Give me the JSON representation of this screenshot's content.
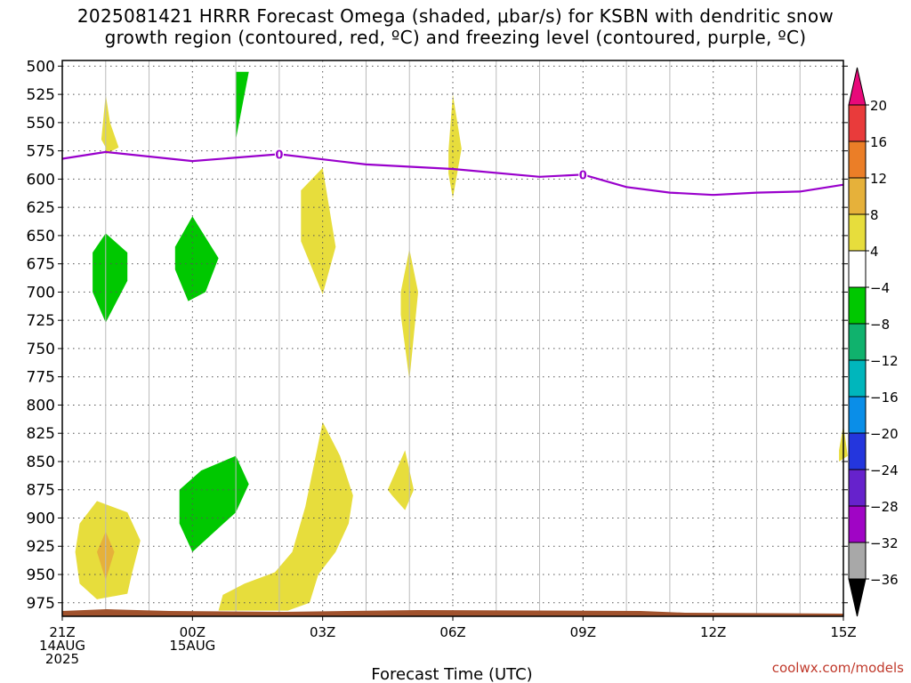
{
  "title_line1": "2025081421 HRRR Forecast Omega (shaded, μbar/s) for KSBN with dendritic snow",
  "title_line2": "growth region (contoured, red, ºC) and freezing level (contoured, purple, ºC)",
  "credit": "coolwx.com/models",
  "chart_data": {
    "type": "heatmap",
    "xlabel": "Forecast Time (UTC)",
    "ylabel": "",
    "y_scale": "linear, inverted (pressure hPa)",
    "ylim": [
      987,
      495
    ],
    "xlim": [
      0,
      18
    ],
    "grid": true,
    "x_ticks": [
      {
        "h": 0,
        "lines": [
          "21Z",
          "14AUG",
          "2025"
        ]
      },
      {
        "h": 3,
        "lines": [
          "00Z",
          "15AUG"
        ]
      },
      {
        "h": 6,
        "lines": [
          "03Z"
        ]
      },
      {
        "h": 9,
        "lines": [
          "06Z"
        ]
      },
      {
        "h": 12,
        "lines": [
          "09Z"
        ]
      },
      {
        "h": 15,
        "lines": [
          "12Z"
        ]
      },
      {
        "h": 18,
        "lines": [
          "15Z"
        ]
      }
    ],
    "y_ticks": [
      500,
      525,
      550,
      575,
      600,
      625,
      650,
      675,
      700,
      725,
      750,
      775,
      800,
      825,
      850,
      875,
      900,
      925,
      950,
      975
    ],
    "colorbar": {
      "labels": [
        "20",
        "16",
        "12",
        "8",
        "4",
        "−4",
        "−8",
        "−12",
        "−16",
        "−20",
        "−24",
        "−28",
        "−32",
        "−36"
      ],
      "colors": [
        "#e8097a",
        "#e93b3b",
        "#eb7e27",
        "#e6b13a",
        "#e7dd3c",
        "#ffffff",
        "#00c800",
        "#10b26d",
        "#00b6bc",
        "#0a8ee8",
        "#2436dd",
        "#6622cc",
        "#a005c5",
        "#a8a8a8",
        "#000000"
      ]
    },
    "freezing_level": {
      "label": "0",
      "color": "#9900cc",
      "x": [
        0,
        1,
        3,
        5,
        7,
        9,
        11,
        12,
        13,
        14,
        15,
        16,
        17,
        18
      ],
      "y": [
        582,
        576,
        584,
        578,
        587,
        591,
        598,
        596,
        607,
        612,
        614,
        612,
        611,
        605
      ]
    },
    "omega_regions": [
      {
        "value": 6,
        "color": "#e7dd3c",
        "points": [
          [
            1.0,
            572
          ],
          [
            0.9,
            565
          ],
          [
            1.0,
            525
          ],
          [
            1.1,
            550
          ],
          [
            1.3,
            572
          ],
          [
            1.0,
            578
          ]
        ]
      },
      {
        "value": 6,
        "color": "#e7dd3c",
        "points": [
          [
            8.9,
            575
          ],
          [
            9.0,
            525
          ],
          [
            9.2,
            573
          ],
          [
            9.0,
            617
          ],
          [
            8.9,
            595
          ]
        ]
      },
      {
        "value": 6,
        "color": "#e7dd3c",
        "points": [
          [
            5.5,
            610
          ],
          [
            6.0,
            590
          ],
          [
            6.3,
            660
          ],
          [
            6.0,
            702
          ],
          [
            5.5,
            655
          ]
        ]
      },
      {
        "value": 6,
        "color": "#e7dd3c",
        "points": [
          [
            7.8,
            700
          ],
          [
            8.0,
            662
          ],
          [
            8.2,
            700
          ],
          [
            8.0,
            778
          ],
          [
            7.8,
            720
          ]
        ]
      },
      {
        "value": 6,
        "color": "#e7dd3c",
        "points": [
          [
            5.6,
            890
          ],
          [
            6.0,
            815
          ],
          [
            6.4,
            845
          ],
          [
            6.7,
            880
          ],
          [
            6.6,
            905
          ],
          [
            6.3,
            930
          ],
          [
            5.9,
            950
          ],
          [
            5.7,
            975
          ],
          [
            5.2,
            982
          ],
          [
            4.5,
            982
          ],
          [
            3.6,
            982
          ],
          [
            3.7,
            968
          ],
          [
            4.2,
            958
          ],
          [
            4.9,
            948
          ],
          [
            5.3,
            930
          ]
        ]
      },
      {
        "value": 6,
        "color": "#e7dd3c",
        "points": [
          [
            7.5,
            875
          ],
          [
            7.9,
            840
          ],
          [
            8.1,
            875
          ],
          [
            7.9,
            893
          ],
          [
            7.6,
            880
          ]
        ]
      },
      {
        "value": 6,
        "color": "#e7dd3c",
        "points": [
          [
            0.4,
            905
          ],
          [
            0.8,
            885
          ],
          [
            1.5,
            895
          ],
          [
            1.8,
            920
          ],
          [
            1.6,
            950
          ],
          [
            1.5,
            967
          ],
          [
            0.8,
            972
          ],
          [
            0.4,
            958
          ],
          [
            0.3,
            930
          ]
        ]
      },
      {
        "value": 6,
        "color": "#e7dd3c",
        "points": [
          [
            17.9,
            840
          ],
          [
            18.0,
            818
          ],
          [
            18.1,
            845
          ],
          [
            17.9,
            850
          ]
        ]
      },
      {
        "value": 10,
        "color": "#e6b13a",
        "points": [
          [
            1.0,
            912
          ],
          [
            1.2,
            930
          ],
          [
            1.0,
            955
          ],
          [
            0.8,
            930
          ]
        ]
      },
      {
        "value": -6,
        "color": "#00c800",
        "points": [
          [
            4.0,
            505
          ],
          [
            4.0,
            565
          ],
          [
            4.3,
            505
          ]
        ]
      },
      {
        "value": -6,
        "color": "#00c800",
        "points": [
          [
            0.7,
            665
          ],
          [
            1.0,
            648
          ],
          [
            1.5,
            665
          ],
          [
            1.5,
            690
          ],
          [
            1.0,
            727
          ],
          [
            0.7,
            700
          ]
        ]
      },
      {
        "value": -6,
        "color": "#00c800",
        "points": [
          [
            2.6,
            660
          ],
          [
            3.0,
            633
          ],
          [
            3.6,
            670
          ],
          [
            3.3,
            700
          ],
          [
            2.9,
            708
          ],
          [
            2.6,
            680
          ]
        ]
      },
      {
        "value": -6,
        "color": "#00c800",
        "points": [
          [
            2.7,
            875
          ],
          [
            3.2,
            858
          ],
          [
            4.0,
            845
          ],
          [
            4.3,
            870
          ],
          [
            4.0,
            895
          ],
          [
            3.0,
            930
          ],
          [
            2.7,
            905
          ]
        ]
      }
    ]
  }
}
